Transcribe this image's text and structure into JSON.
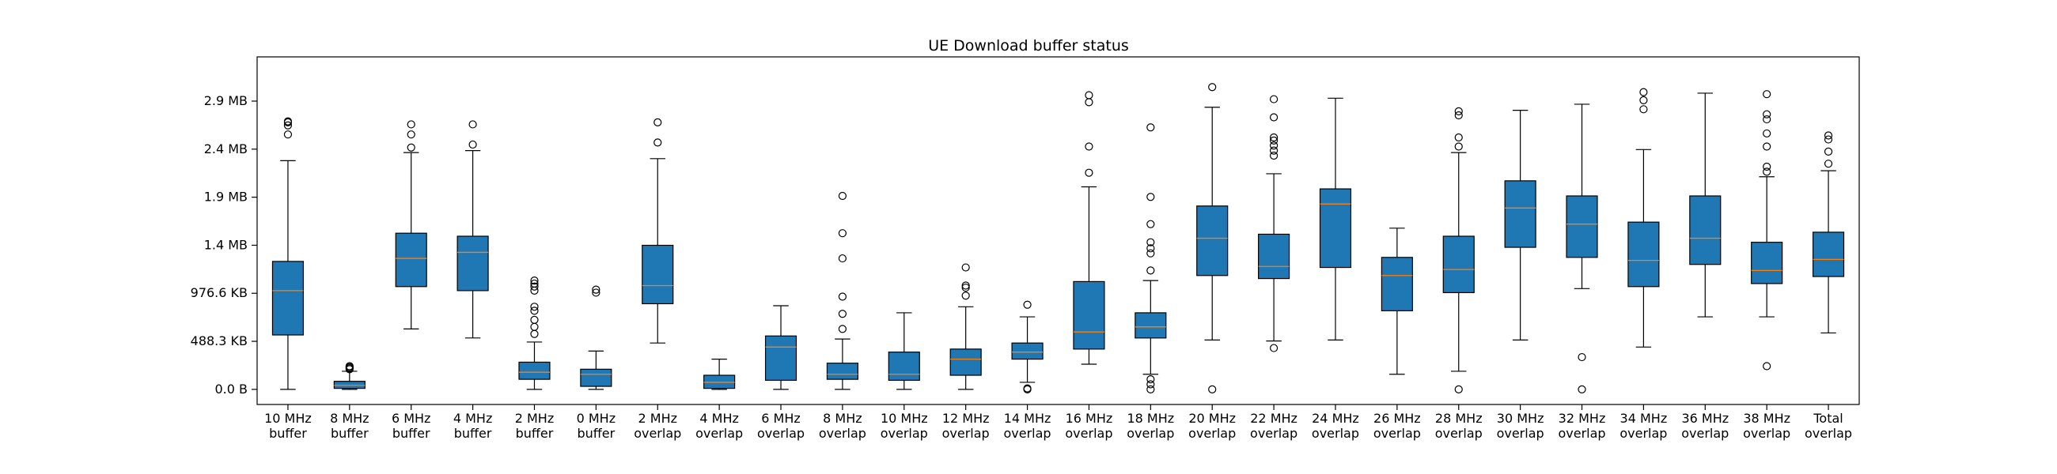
{
  "chart_data": {
    "type": "boxplot",
    "title": "UE Download buffer status",
    "xlabel": "",
    "ylabel": "",
    "ylim_mb": [
      -0.15,
      3.3
    ],
    "grid": false,
    "legend": "none",
    "box_color": "#1f77b4",
    "median_color": "#ff7f0e",
    "y_ticks": [
      {
        "value": 0.0,
        "label": "0.0 B"
      },
      {
        "value": 0.4769,
        "label": "488.3 KB"
      },
      {
        "value": 0.9537,
        "label": "976.6 KB"
      },
      {
        "value": 1.4305,
        "label": "1.4 MB"
      },
      {
        "value": 1.9074,
        "label": "1.9 MB"
      },
      {
        "value": 2.3842,
        "label": "2.4 MB"
      },
      {
        "value": 2.861,
        "label": "2.9 MB"
      }
    ],
    "categories": [
      {
        "line1": "10 MHz",
        "line2": "buffer",
        "whislo": 0.0,
        "q1": 0.54,
        "med": 0.98,
        "q3": 1.27,
        "whishi": 2.27,
        "fliers": [
          2.53,
          2.62,
          2.65,
          2.66
        ]
      },
      {
        "line1": "8 MHz",
        "line2": "buffer",
        "whislo": 0.0,
        "q1": 0.01,
        "med": 0.04,
        "q3": 0.08,
        "whishi": 0.18,
        "fliers": [
          0.2,
          0.21,
          0.22,
          0.23
        ]
      },
      {
        "line1": "6 MHz",
        "line2": "buffer",
        "whislo": 0.6,
        "q1": 1.02,
        "med": 1.3,
        "q3": 1.55,
        "whishi": 2.35,
        "fliers": [
          2.4,
          2.53,
          2.63
        ]
      },
      {
        "line1": "4 MHz",
        "line2": "buffer",
        "whislo": 0.51,
        "q1": 0.98,
        "med": 1.36,
        "q3": 1.52,
        "whishi": 2.37,
        "fliers": [
          2.43,
          2.63
        ]
      },
      {
        "line1": "2 MHz",
        "line2": "buffer",
        "whislo": 0.0,
        "q1": 0.1,
        "med": 0.17,
        "q3": 0.27,
        "whishi": 0.47,
        "fliers": [
          0.55,
          0.62,
          0.69,
          0.78,
          0.82,
          0.98,
          1.02,
          1.05,
          1.08
        ]
      },
      {
        "line1": "0 MHz",
        "line2": "buffer",
        "whislo": 0.0,
        "q1": 0.03,
        "med": 0.15,
        "q3": 0.2,
        "whishi": 0.38,
        "fliers": [
          0.96,
          0.99
        ]
      },
      {
        "line1": "2 MHz",
        "line2": "overlap",
        "whislo": 0.46,
        "q1": 0.85,
        "med": 1.03,
        "q3": 1.43,
        "whishi": 2.29,
        "fliers": [
          2.45,
          2.65
        ]
      },
      {
        "line1": "4 MHz",
        "line2": "overlap",
        "whislo": 0.0,
        "q1": 0.01,
        "med": 0.07,
        "q3": 0.14,
        "whishi": 0.3,
        "fliers": []
      },
      {
        "line1": "6 MHz",
        "line2": "overlap",
        "whislo": 0.0,
        "q1": 0.09,
        "med": 0.42,
        "q3": 0.53,
        "whishi": 0.83,
        "fliers": []
      },
      {
        "line1": "8 MHz",
        "line2": "overlap",
        "whislo": 0.0,
        "q1": 0.1,
        "med": 0.15,
        "q3": 0.26,
        "whishi": 0.5,
        "fliers": [
          0.6,
          0.75,
          0.92,
          1.3,
          1.55,
          1.92
        ]
      },
      {
        "line1": "10 MHz",
        "line2": "overlap",
        "whislo": 0.0,
        "q1": 0.09,
        "med": 0.15,
        "q3": 0.37,
        "whishi": 0.76,
        "fliers": []
      },
      {
        "line1": "12 MHz",
        "line2": "overlap",
        "whislo": 0.0,
        "q1": 0.14,
        "med": 0.3,
        "q3": 0.4,
        "whishi": 0.82,
        "fliers": [
          0.93,
          1.01,
          1.03,
          1.21
        ]
      },
      {
        "line1": "14 MHz",
        "line2": "overlap",
        "whislo": 0.07,
        "q1": 0.3,
        "med": 0.37,
        "q3": 0.46,
        "whishi": 0.72,
        "fliers": [
          0.0,
          0.01,
          0.84
        ]
      },
      {
        "line1": "16 MHz",
        "line2": "overlap",
        "whislo": 0.25,
        "q1": 0.4,
        "med": 0.57,
        "q3": 1.07,
        "whishi": 2.01,
        "fliers": [
          2.15,
          2.41,
          2.85,
          2.92
        ]
      },
      {
        "line1": "18 MHz",
        "line2": "overlap",
        "whislo": 0.15,
        "q1": 0.51,
        "med": 0.62,
        "q3": 0.76,
        "whishi": 1.08,
        "fliers": [
          0.0,
          0.05,
          0.1,
          1.18,
          1.35,
          1.4,
          1.46,
          1.64,
          1.91,
          2.6
        ]
      },
      {
        "line1": "20 MHz",
        "line2": "overlap",
        "whislo": 0.49,
        "q1": 1.13,
        "med": 1.5,
        "q3": 1.82,
        "whishi": 2.8,
        "fliers": [
          0.0,
          3.0
        ]
      },
      {
        "line1": "22 MHz",
        "line2": "overlap",
        "whislo": 0.48,
        "q1": 1.1,
        "med": 1.22,
        "q3": 1.54,
        "whishi": 2.14,
        "fliers": [
          0.41,
          2.32,
          2.37,
          2.42,
          2.47,
          2.5,
          2.7,
          2.88
        ]
      },
      {
        "line1": "24 MHz",
        "line2": "overlap",
        "whislo": 0.49,
        "q1": 1.21,
        "med": 1.84,
        "q3": 1.99,
        "whishi": 2.89,
        "fliers": []
      },
      {
        "line1": "26 MHz",
        "line2": "overlap",
        "whislo": 0.15,
        "q1": 0.78,
        "med": 1.13,
        "q3": 1.31,
        "whishi": 1.6,
        "fliers": []
      },
      {
        "line1": "28 MHz",
        "line2": "overlap",
        "whislo": 0.18,
        "q1": 0.96,
        "med": 1.19,
        "q3": 1.52,
        "whishi": 2.35,
        "fliers": [
          0.0,
          2.41,
          2.5,
          2.72,
          2.76
        ]
      },
      {
        "line1": "30 MHz",
        "line2": "overlap",
        "whislo": 0.49,
        "q1": 1.41,
        "med": 1.8,
        "q3": 2.07,
        "whishi": 2.77,
        "fliers": []
      },
      {
        "line1": "32 MHz",
        "line2": "overlap",
        "whislo": 1.0,
        "q1": 1.31,
        "med": 1.64,
        "q3": 1.92,
        "whishi": 2.83,
        "fliers": [
          0.0,
          0.32
        ]
      },
      {
        "line1": "34 MHz",
        "line2": "overlap",
        "whislo": 0.42,
        "q1": 1.02,
        "med": 1.28,
        "q3": 1.66,
        "whishi": 2.38,
        "fliers": [
          2.78,
          2.87,
          2.95
        ]
      },
      {
        "line1": "36 MHz",
        "line2": "overlap",
        "whislo": 0.72,
        "q1": 1.24,
        "med": 1.5,
        "q3": 1.92,
        "whishi": 2.94,
        "fliers": []
      },
      {
        "line1": "38 MHz",
        "line2": "overlap",
        "whislo": 0.72,
        "q1": 1.05,
        "med": 1.18,
        "q3": 1.46,
        "whishi": 2.11,
        "fliers": [
          0.23,
          2.16,
          2.21,
          2.41,
          2.54,
          2.68,
          2.73,
          2.93
        ]
      },
      {
        "line1": "Total",
        "line2": "overlap",
        "whislo": 0.56,
        "q1": 1.12,
        "med": 1.29,
        "q3": 1.56,
        "whishi": 2.17,
        "fliers": [
          2.24,
          2.36,
          2.48,
          2.52
        ]
      }
    ]
  }
}
